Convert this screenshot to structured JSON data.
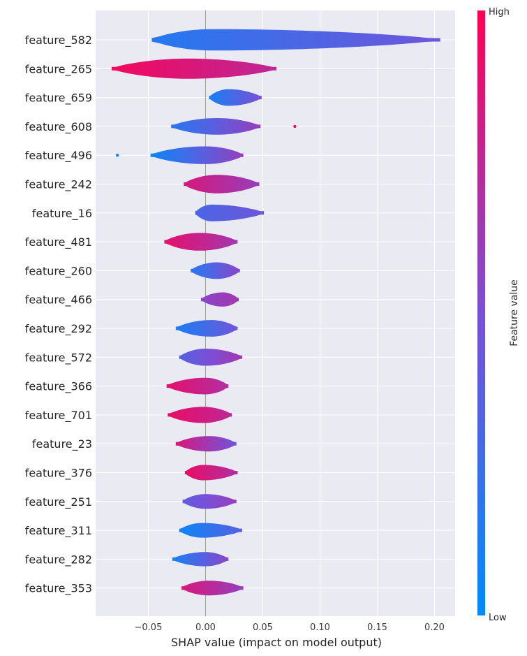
{
  "chart_data": {
    "type": "violin",
    "xlabel": "SHAP value (impact on model output)",
    "xlim": [
      -0.096,
      0.218
    ],
    "xticks": [
      -0.05,
      0.0,
      0.05,
      0.1,
      0.15,
      0.2
    ],
    "xtick_labels": [
      "−0.05",
      "0.00",
      "0.05",
      "0.10",
      "0.15",
      "0.20"
    ],
    "grid": true,
    "colorbar": {
      "title": "Feature value",
      "high_label": "High",
      "low_label": "Low",
      "low_color": "#008bfb",
      "mid_color": "#7b4fd6",
      "high_color": "#ff0052"
    },
    "features": [
      {
        "name": "feature_582",
        "min": -0.047,
        "max": 0.205,
        "peak": 0.005,
        "width": 0.9,
        "color_low": 0.15,
        "color_high": 0.45,
        "outliers": []
      },
      {
        "name": "feature_265",
        "min": -0.082,
        "max": 0.062,
        "peak": -0.015,
        "width": 0.85,
        "color_low": 0.95,
        "color_high": 0.75,
        "outliers": []
      },
      {
        "name": "feature_659",
        "min": 0.003,
        "max": 0.049,
        "peak": 0.02,
        "width": 0.7,
        "color_low": 0.1,
        "color_high": 0.5,
        "outliers": []
      },
      {
        "name": "feature_608",
        "min": -0.03,
        "max": 0.048,
        "peak": 0.01,
        "width": 0.7,
        "color_low": 0.15,
        "color_high": 0.6,
        "outliers": [
          {
            "x": 0.078,
            "c": 0.95
          }
        ]
      },
      {
        "name": "feature_496",
        "min": -0.048,
        "max": 0.033,
        "peak": 0.0,
        "width": 0.75,
        "color_low": 0.05,
        "color_high": 0.6,
        "outliers": [
          {
            "x": -0.077,
            "c": 0.05
          }
        ]
      },
      {
        "name": "feature_242",
        "min": -0.019,
        "max": 0.047,
        "peak": 0.01,
        "width": 0.78,
        "color_low": 0.85,
        "color_high": 0.6,
        "outliers": []
      },
      {
        "name": "feature_16",
        "min": -0.009,
        "max": 0.051,
        "peak": 0.005,
        "width": 0.7,
        "color_low": 0.3,
        "color_high": 0.45,
        "outliers": []
      },
      {
        "name": "feature_481",
        "min": -0.036,
        "max": 0.028,
        "peak": -0.005,
        "width": 0.75,
        "color_low": 0.9,
        "color_high": 0.65,
        "outliers": []
      },
      {
        "name": "feature_260",
        "min": -0.013,
        "max": 0.03,
        "peak": 0.01,
        "width": 0.7,
        "color_low": 0.15,
        "color_high": 0.55,
        "outliers": []
      },
      {
        "name": "feature_466",
        "min": -0.004,
        "max": 0.029,
        "peak": 0.015,
        "width": 0.6,
        "color_low": 0.55,
        "color_high": 0.65,
        "outliers": []
      },
      {
        "name": "feature_292",
        "min": -0.026,
        "max": 0.028,
        "peak": 0.005,
        "width": 0.7,
        "color_low": 0.1,
        "color_high": 0.45,
        "outliers": []
      },
      {
        "name": "feature_572",
        "min": -0.023,
        "max": 0.032,
        "peak": 0.0,
        "width": 0.72,
        "color_low": 0.35,
        "color_high": 0.65,
        "outliers": []
      },
      {
        "name": "feature_366",
        "min": -0.034,
        "max": 0.02,
        "peak": 0.0,
        "width": 0.7,
        "color_low": 0.9,
        "color_high": 0.7,
        "outliers": []
      },
      {
        "name": "feature_701",
        "min": -0.033,
        "max": 0.023,
        "peak": -0.002,
        "width": 0.68,
        "color_low": 0.92,
        "color_high": 0.75,
        "outliers": []
      },
      {
        "name": "feature_23",
        "min": -0.026,
        "max": 0.027,
        "peak": 0.003,
        "width": 0.65,
        "color_low": 0.85,
        "color_high": 0.45,
        "outliers": []
      },
      {
        "name": "feature_376",
        "min": -0.018,
        "max": 0.028,
        "peak": -0.002,
        "width": 0.65,
        "color_low": 0.92,
        "color_high": 0.7,
        "outliers": []
      },
      {
        "name": "feature_251",
        "min": -0.02,
        "max": 0.027,
        "peak": 0.0,
        "width": 0.62,
        "color_low": 0.4,
        "color_high": 0.6,
        "outliers": []
      },
      {
        "name": "feature_311",
        "min": -0.023,
        "max": 0.032,
        "peak": -0.003,
        "width": 0.62,
        "color_low": 0.05,
        "color_high": 0.35,
        "outliers": []
      },
      {
        "name": "feature_282",
        "min": -0.029,
        "max": 0.02,
        "peak": 0.0,
        "width": 0.6,
        "color_low": 0.1,
        "color_high": 0.55,
        "outliers": []
      },
      {
        "name": "feature_353",
        "min": -0.021,
        "max": 0.033,
        "peak": 0.003,
        "width": 0.62,
        "color_low": 0.85,
        "color_high": 0.6,
        "outliers": []
      }
    ]
  }
}
